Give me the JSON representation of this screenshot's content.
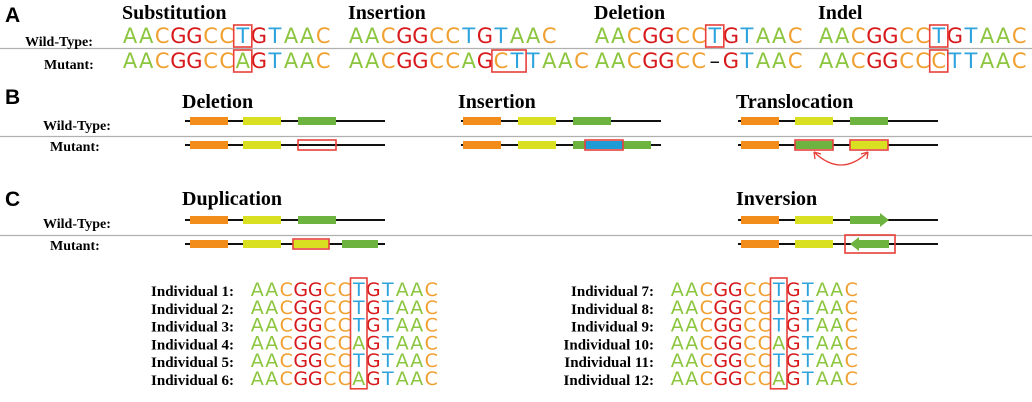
{
  "colors": {
    "A": "#8cc63f",
    "C": "#f0a030",
    "G": "#d7191c",
    "T": "#2ea3dc",
    "highlight": "#e8403a",
    "gene_orange": "#f28c1b",
    "gene_yellow": "#d9e021",
    "gene_green": "#6db33f",
    "gene_blue": "#1e9ad6",
    "line": "#111111",
    "divider": "#b0b0b0"
  },
  "panel_a": {
    "letter": "A",
    "wild_type_label": "Wild-Type:",
    "mutant_label": "Mutant:",
    "columns": [
      {
        "title": "Substitution",
        "wild": "AACGGCCTGTAAC",
        "mutant": "AACGGCCAGTAAC",
        "wild_box": [
          7,
          1
        ],
        "mutant_box": [
          7,
          1
        ]
      },
      {
        "title": "Insertion",
        "wild": "AACGGCCTGTAAC",
        "mutant": "AACGGCCAGCTTAAC",
        "wild_box": null,
        "mutant_box": [
          9,
          2
        ]
      },
      {
        "title": "Deletion",
        "wild": "AACGGCCTGTAAC",
        "mutant": "AACGGCC–GTAAC",
        "wild_box": [
          7,
          1
        ],
        "mutant_box": null
      },
      {
        "title": "Indel",
        "wild": "AACGGCCTGTAAC",
        "mutant": "AACGGCCCTTAAC",
        "wild_box": [
          7,
          1
        ],
        "mutant_box": [
          7,
          1
        ]
      }
    ]
  },
  "panel_b": {
    "letter": "B",
    "wild_type_label": "Wild-Type:",
    "mutant_label": "Mutant:",
    "columns": [
      {
        "title": "Deletion"
      },
      {
        "title": "Insertion"
      },
      {
        "title": "Translocation"
      }
    ]
  },
  "panel_c": {
    "letter": "C",
    "wild_type_label": "Wild-Type:",
    "mutant_label": "Mutant:",
    "columns": [
      {
        "title": "Duplication"
      },
      {
        "title": "Inversion"
      }
    ],
    "individuals_left": [
      {
        "label": "Individual 1:",
        "seq": "AACGGCCTGTAAC"
      },
      {
        "label": "Individual 2:",
        "seq": "AACGGCCTGTAAC"
      },
      {
        "label": "Individual 3:",
        "seq": "AACGGCCTGTAAC"
      },
      {
        "label": "Individual 4:",
        "seq": "AACGGCCAGTAAC"
      },
      {
        "label": "Individual 5:",
        "seq": "AACGGCCTGTAAC"
      },
      {
        "label": "Individual 6:",
        "seq": "AACGGCCAGTAAC"
      }
    ],
    "individuals_right": [
      {
        "label": "Individual 7:",
        "seq": "AACGGCCTGTAAC"
      },
      {
        "label": "Individual 8:",
        "seq": "AACGGCCTGTAAC"
      },
      {
        "label": "Individual 9:",
        "seq": "AACGGCCTGTAAC"
      },
      {
        "label": "Individual 10:",
        "seq": "AACGGCCAGTAAC"
      },
      {
        "label": "Individual 11:",
        "seq": "AACGGCCTGTAAC"
      },
      {
        "label": "Individual 12:",
        "seq": "AACGGCCAGTAAC"
      }
    ]
  }
}
